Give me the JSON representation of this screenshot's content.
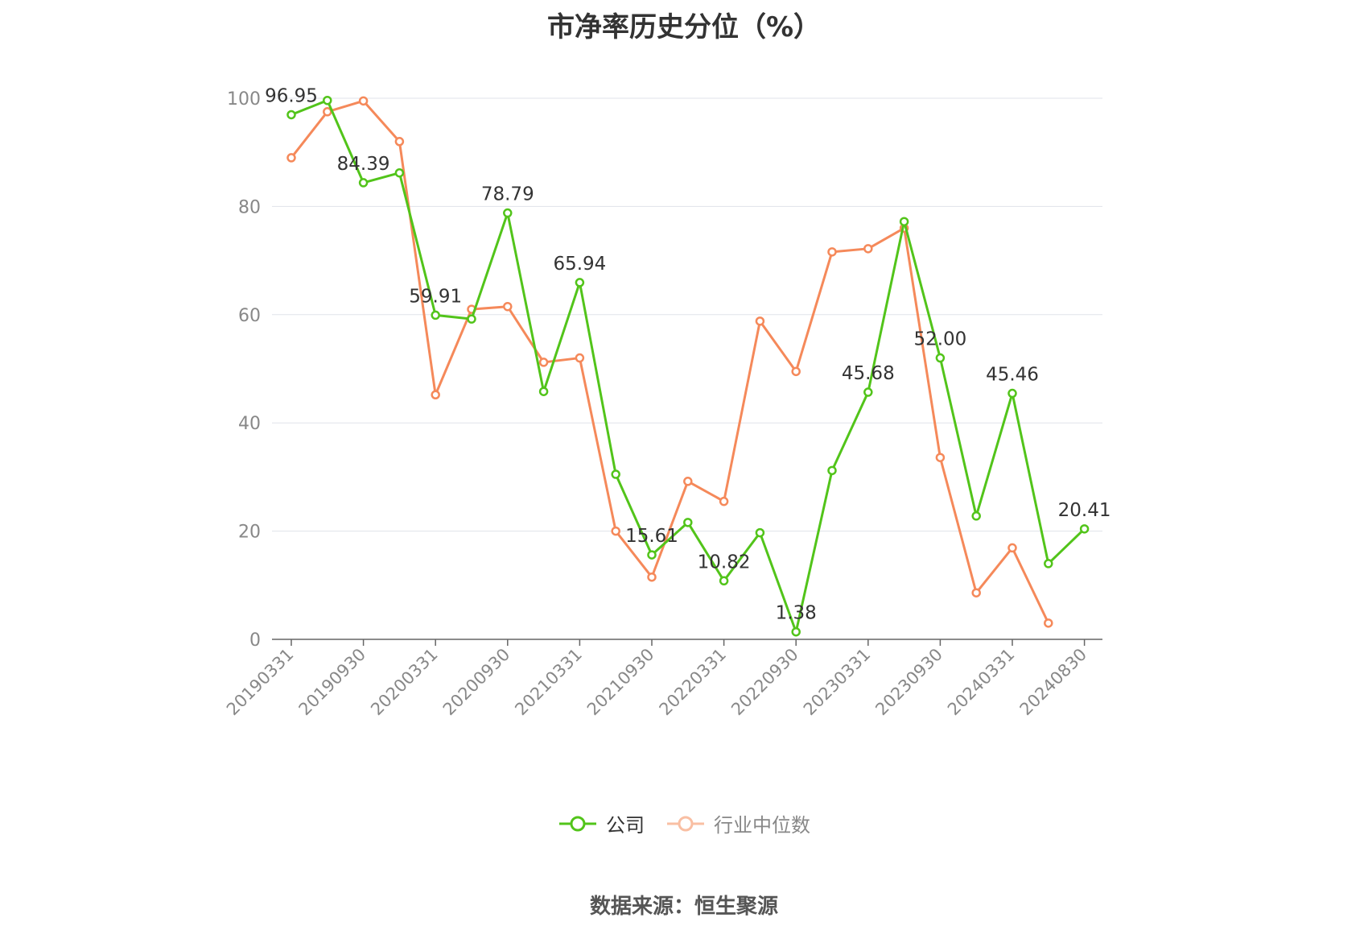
{
  "title": "市净率历史分位（%）",
  "source": "数据来源：恒生聚源",
  "colors": {
    "company": "#52c41a",
    "industry": "#f5895a",
    "industry_legend": "#f9bfa3",
    "grid": "#e0e3ea",
    "axis": "#666666"
  },
  "chart_data": {
    "type": "line",
    "title": "市净率历史分位（%）",
    "ylim": [
      0,
      100
    ],
    "yticks": [
      0,
      20,
      40,
      60,
      80,
      100
    ],
    "x": [
      "20190331",
      "20190630",
      "20190930",
      "20191231",
      "20200331",
      "20200630",
      "20200930",
      "20201231",
      "20210331",
      "20210630",
      "20210930",
      "20211231",
      "20220331",
      "20220630",
      "20220930",
      "20221231",
      "20230331",
      "20230630",
      "20230930",
      "20231231",
      "20240331",
      "20240630",
      "20240830"
    ],
    "xticks": [
      "20190331",
      "20190930",
      "20200331",
      "20200930",
      "20210331",
      "20210930",
      "20220331",
      "20220930",
      "20230331",
      "20230930",
      "20240331",
      "20240830"
    ],
    "series": [
      {
        "name": "公司",
        "values": [
          96.95,
          99.6,
          84.39,
          86.2,
          59.91,
          59.2,
          78.79,
          45.8,
          65.94,
          30.5,
          15.61,
          21.6,
          10.82,
          19.7,
          1.38,
          31.2,
          45.68,
          77.2,
          52.0,
          22.8,
          45.46,
          14.0,
          20.41
        ],
        "labels": [
          "96.95",
          null,
          "84.39",
          null,
          "59.91",
          null,
          "78.79",
          null,
          "65.94",
          null,
          "15.61",
          null,
          "10.82",
          null,
          "1.38",
          null,
          "45.68",
          null,
          "52.00",
          null,
          "45.46",
          null,
          "20.41"
        ]
      },
      {
        "name": "行业中位数",
        "values": [
          89.0,
          97.5,
          99.5,
          92.0,
          45.2,
          61.0,
          61.5,
          51.2,
          52.0,
          20.0,
          11.5,
          29.2,
          25.5,
          58.8,
          49.5,
          71.6,
          72.2,
          76.0,
          33.6,
          8.6,
          16.9,
          3.0,
          null
        ]
      }
    ],
    "legend": "bottom-center"
  }
}
